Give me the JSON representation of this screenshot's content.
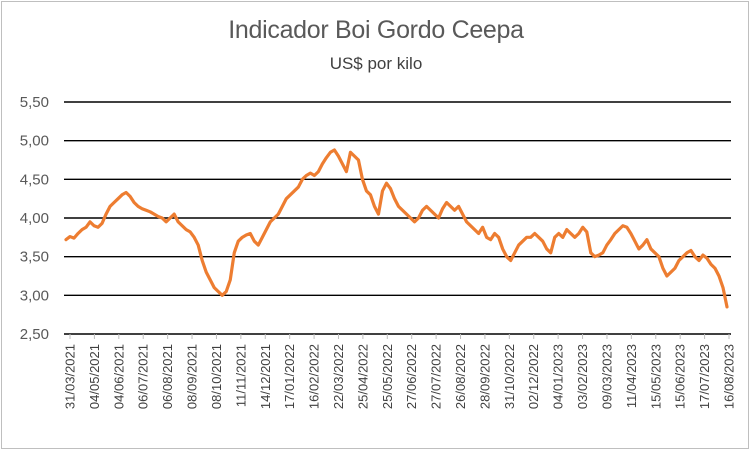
{
  "chart_data": {
    "type": "line",
    "title": "Indicador Boi Gordo Ceepa",
    "subtitle": "US$ por kilo",
    "xlabel": "",
    "ylabel": "",
    "ylim": [
      2.5,
      5.5
    ],
    "yticks": [
      "2,50",
      "3,00",
      "3,50",
      "4,00",
      "4,50",
      "5,00",
      "5,50"
    ],
    "ytick_values": [
      2.5,
      3.0,
      3.5,
      4.0,
      4.5,
      5.0,
      5.5
    ],
    "grid": true,
    "legend": "none",
    "line_color": "#ed7d31",
    "x_tick_labels": [
      "31/03/2021",
      "04/05/2021",
      "04/06/2021",
      "06/07/2021",
      "06/08/2021",
      "08/09/2021",
      "08/10/2021",
      "11/11/2021",
      "14/12/2021",
      "17/01/2022",
      "16/02/2022",
      "22/03/2022",
      "25/04/2022",
      "25/05/2022",
      "27/06/2022",
      "27/07/2022",
      "26/08/2022",
      "28/09/2022",
      "31/10/2022",
      "02/12/2022",
      "04/01/2023",
      "03/02/2023",
      "09/03/2023",
      "11/04/2023",
      "15/05/2023",
      "15/06/2023",
      "17/07/2023",
      "16/08/2023"
    ],
    "series": [
      {
        "values": [
          3.72,
          3.76,
          3.74,
          3.8,
          3.85,
          3.88,
          3.95,
          3.9,
          3.88,
          3.93,
          4.05,
          4.15,
          4.2,
          4.25,
          4.3,
          4.33,
          4.28,
          4.2,
          4.15,
          4.12,
          4.1,
          4.08,
          4.05,
          4.02,
          4.0,
          3.95,
          4.0,
          4.05,
          3.95,
          3.9,
          3.85,
          3.82,
          3.75,
          3.65,
          3.45,
          3.3,
          3.2,
          3.1,
          3.05,
          3.0,
          3.05,
          3.2,
          3.55,
          3.7,
          3.75,
          3.78,
          3.8,
          3.7,
          3.65,
          3.75,
          3.85,
          3.95,
          4.0,
          4.05,
          4.15,
          4.25,
          4.3,
          4.35,
          4.4,
          4.5,
          4.55,
          4.58,
          4.55,
          4.6,
          4.7,
          4.78,
          4.85,
          4.88,
          4.8,
          4.7,
          4.6,
          4.85,
          4.8,
          4.75,
          4.5,
          4.35,
          4.3,
          4.15,
          4.05,
          4.35,
          4.45,
          4.38,
          4.25,
          4.15,
          4.1,
          4.05,
          4.0,
          3.95,
          4.0,
          4.1,
          4.15,
          4.1,
          4.05,
          4.0,
          4.12,
          4.2,
          4.15,
          4.1,
          4.15,
          4.05,
          3.95,
          3.9,
          3.85,
          3.8,
          3.88,
          3.75,
          3.72,
          3.8,
          3.75,
          3.6,
          3.5,
          3.45,
          3.55,
          3.65,
          3.7,
          3.75,
          3.75,
          3.8,
          3.75,
          3.7,
          3.6,
          3.55,
          3.75,
          3.8,
          3.75,
          3.85,
          3.8,
          3.75,
          3.8,
          3.88,
          3.82,
          3.55,
          3.5,
          3.52,
          3.55,
          3.65,
          3.72,
          3.8,
          3.85,
          3.9,
          3.88,
          3.8,
          3.7,
          3.6,
          3.65,
          3.72,
          3.6,
          3.55,
          3.5,
          3.35,
          3.25,
          3.3,
          3.35,
          3.45,
          3.5,
          3.55,
          3.58,
          3.5,
          3.45,
          3.52,
          3.48,
          3.4,
          3.35,
          3.25,
          3.1,
          2.85
        ]
      }
    ]
  }
}
